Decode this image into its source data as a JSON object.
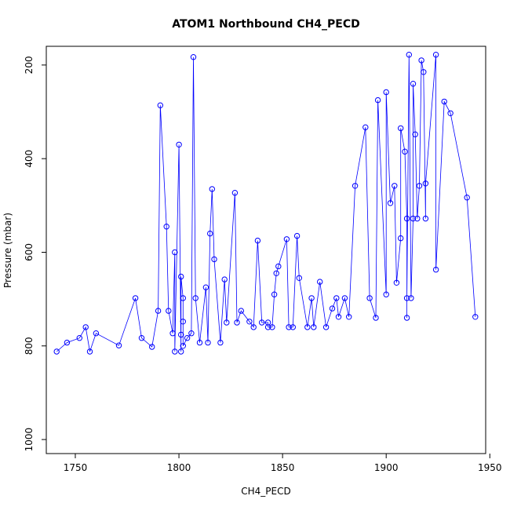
{
  "chart_data": {
    "type": "scatter",
    "title": "ATOM1 Northbound CH4_PECD",
    "xlabel": "CH4_PECD",
    "ylabel": "Pressure (mbar)",
    "x_ticks": [
      1750,
      1800,
      1850,
      1900,
      1950
    ],
    "y_ticks": [
      200,
      400,
      600,
      800,
      1000
    ],
    "xlim": [
      1736,
      1948
    ],
    "ylim_display": [
      160,
      1030
    ],
    "y_reversed": true,
    "grid": false,
    "series_color": "#0000ff",
    "point_style": "open-circle",
    "points": [
      [
        1741,
        812
      ],
      [
        1746,
        793
      ],
      [
        1752,
        783
      ],
      [
        1755,
        760
      ],
      [
        1757,
        812
      ],
      [
        1760,
        773
      ],
      [
        1771,
        799
      ],
      [
        1779,
        698
      ],
      [
        1782,
        783
      ],
      [
        1787,
        802
      ],
      [
        1790,
        725
      ],
      [
        1791,
        286
      ],
      [
        1794,
        545
      ],
      [
        1795,
        725
      ],
      [
        1797,
        773
      ],
      [
        1798,
        600
      ],
      [
        1798,
        812
      ],
      [
        1800,
        370
      ],
      [
        1801,
        812
      ],
      [
        1801,
        776
      ],
      [
        1801,
        652
      ],
      [
        1802,
        698
      ],
      [
        1802,
        748
      ],
      [
        1802,
        800
      ],
      [
        1804,
        783
      ],
      [
        1806,
        773
      ],
      [
        1807,
        183
      ],
      [
        1808,
        698
      ],
      [
        1810,
        793
      ],
      [
        1813,
        675
      ],
      [
        1814,
        793
      ],
      [
        1815,
        560
      ],
      [
        1816,
        465
      ],
      [
        1817,
        615
      ],
      [
        1820,
        793
      ],
      [
        1822,
        658
      ],
      [
        1823,
        750
      ],
      [
        1827,
        473
      ],
      [
        1828,
        750
      ],
      [
        1830,
        725
      ],
      [
        1834,
        748
      ],
      [
        1836,
        760
      ],
      [
        1838,
        575
      ],
      [
        1840,
        750
      ],
      [
        1843,
        750
      ],
      [
        1843,
        760
      ],
      [
        1845,
        760
      ],
      [
        1846,
        690
      ],
      [
        1847,
        645
      ],
      [
        1848,
        630
      ],
      [
        1852,
        572
      ],
      [
        1853,
        760
      ],
      [
        1855,
        760
      ],
      [
        1857,
        565
      ],
      [
        1858,
        655
      ],
      [
        1862,
        760
      ],
      [
        1864,
        698
      ],
      [
        1865,
        760
      ],
      [
        1868,
        663
      ],
      [
        1871,
        760
      ],
      [
        1874,
        720
      ],
      [
        1876,
        698
      ],
      [
        1877,
        738
      ],
      [
        1880,
        698
      ],
      [
        1882,
        738
      ],
      [
        1885,
        458
      ],
      [
        1890,
        333
      ],
      [
        1892,
        698
      ],
      [
        1895,
        740
      ],
      [
        1896,
        275
      ],
      [
        1900,
        690
      ],
      [
        1900,
        258
      ],
      [
        1902,
        495
      ],
      [
        1904,
        458
      ],
      [
        1905,
        665
      ],
      [
        1907,
        570
      ],
      [
        1907,
        335
      ],
      [
        1909,
        385
      ],
      [
        1910,
        528
      ],
      [
        1910,
        740
      ],
      [
        1910,
        698
      ],
      [
        1911,
        178
      ],
      [
        1912,
        698
      ],
      [
        1913,
        528
      ],
      [
        1913,
        240
      ],
      [
        1914,
        348
      ],
      [
        1915,
        528
      ],
      [
        1916,
        458
      ],
      [
        1917,
        190
      ],
      [
        1918,
        215
      ],
      [
        1919,
        528
      ],
      [
        1919,
        453
      ],
      [
        1924,
        178
      ],
      [
        1924,
        637
      ],
      [
        1928,
        278
      ],
      [
        1931,
        303
      ],
      [
        1939,
        483
      ],
      [
        1943,
        738
      ]
    ]
  }
}
